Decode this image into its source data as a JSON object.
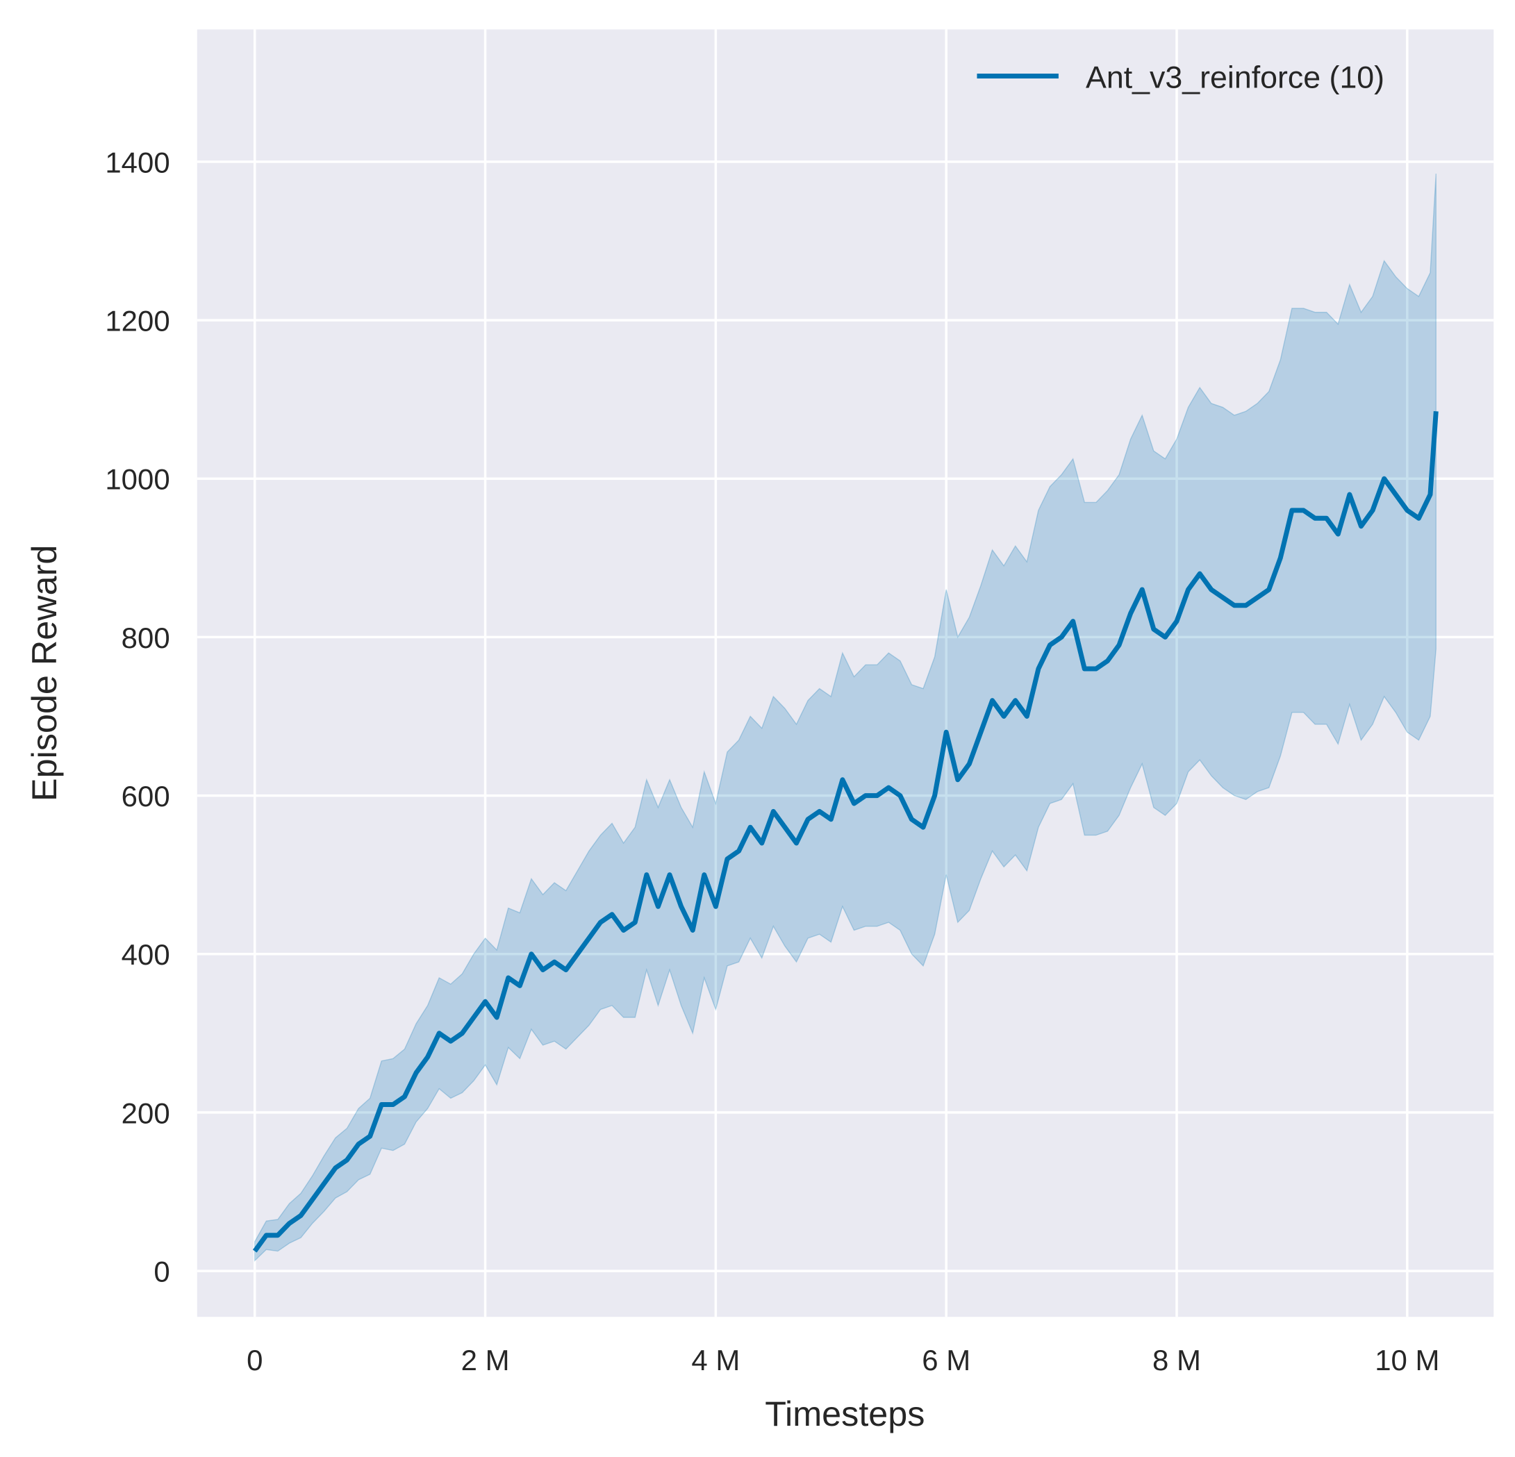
{
  "chart_data": {
    "type": "line",
    "title": "",
    "xlabel": "Timesteps",
    "ylabel": "Episode Reward",
    "xlim": [
      -0.5,
      10.75
    ],
    "ylim": [
      -58,
      1567
    ],
    "x_unit": "M",
    "xticks": [
      0,
      2,
      4,
      6,
      8,
      10
    ],
    "xtick_labels": [
      "0",
      "2 M",
      "4 M",
      "6 M",
      "8 M",
      "10 M"
    ],
    "yticks": [
      0,
      200,
      400,
      600,
      800,
      1000,
      1200,
      1400
    ],
    "ytick_labels": [
      "0",
      "200",
      "400",
      "600",
      "800",
      "1000",
      "1200",
      "1400"
    ],
    "grid": true,
    "legend_placement": "top-right",
    "background": "#eaeaf2",
    "series": [
      {
        "name": "Ant_v3_reinforce (10)",
        "color": "#0173b2",
        "x": [
          0,
          0.1,
          0.2,
          0.3,
          0.4,
          0.5,
          0.6,
          0.7,
          0.8,
          0.9,
          1.0,
          1.1,
          1.2,
          1.3,
          1.4,
          1.5,
          1.6,
          1.7,
          1.8,
          1.9,
          2.0,
          2.1,
          2.2,
          2.3,
          2.4,
          2.5,
          2.6,
          2.7,
          2.8,
          2.9,
          3.0,
          3.1,
          3.2,
          3.3,
          3.4,
          3.5,
          3.6,
          3.7,
          3.8,
          3.9,
          4.0,
          4.1,
          4.2,
          4.3,
          4.4,
          4.5,
          4.6,
          4.7,
          4.8,
          4.9,
          5.0,
          5.1,
          5.2,
          5.3,
          5.4,
          5.5,
          5.6,
          5.7,
          5.8,
          5.9,
          6.0,
          6.1,
          6.2,
          6.3,
          6.4,
          6.5,
          6.6,
          6.7,
          6.8,
          6.9,
          7.0,
          7.1,
          7.2,
          7.3,
          7.4,
          7.5,
          7.6,
          7.7,
          7.8,
          7.9,
          8.0,
          8.1,
          8.2,
          8.3,
          8.4,
          8.5,
          8.6,
          8.7,
          8.8,
          8.9,
          9.0,
          9.1,
          9.2,
          9.3,
          9.4,
          9.5,
          9.6,
          9.7,
          9.8,
          9.9,
          10.0,
          10.1,
          10.2,
          10.25
        ],
        "y": [
          25,
          45,
          45,
          60,
          70,
          90,
          110,
          130,
          140,
          160,
          170,
          210,
          210,
          220,
          250,
          270,
          300,
          290,
          300,
          320,
          340,
          320,
          370,
          360,
          400,
          380,
          390,
          380,
          400,
          420,
          440,
          450,
          430,
          440,
          500,
          460,
          500,
          460,
          430,
          500,
          460,
          520,
          530,
          560,
          540,
          580,
          560,
          540,
          570,
          580,
          570,
          620,
          590,
          600,
          600,
          610,
          600,
          570,
          560,
          600,
          680,
          620,
          640,
          680,
          720,
          700,
          720,
          700,
          760,
          790,
          800,
          820,
          760,
          760,
          770,
          790,
          830,
          860,
          810,
          800,
          820,
          860,
          880,
          860,
          850,
          840,
          840,
          850,
          860,
          900,
          960,
          960,
          950,
          950,
          930,
          980,
          940,
          960,
          1000,
          980,
          960,
          950,
          980,
          1085
        ],
        "ci_halfwidth": [
          12,
          18,
          20,
          25,
          28,
          30,
          35,
          38,
          40,
          45,
          48,
          55,
          58,
          60,
          62,
          65,
          70,
          72,
          75,
          80,
          80,
          85,
          88,
          92,
          95,
          95,
          100,
          100,
          105,
          110,
          110,
          115,
          110,
          120,
          120,
          125,
          120,
          125,
          130,
          130,
          130,
          135,
          140,
          140,
          145,
          145,
          150,
          150,
          150,
          155,
          155,
          160,
          160,
          165,
          165,
          170,
          170,
          170,
          175,
          175,
          180,
          180,
          185,
          185,
          190,
          190,
          195,
          195,
          200,
          200,
          205,
          205,
          210,
          210,
          215,
          215,
          220,
          220,
          225,
          225,
          230,
          230,
          235,
          235,
          240,
          240,
          245,
          245,
          250,
          250,
          255,
          255,
          260,
          260,
          265,
          265,
          270,
          270,
          275,
          275,
          280,
          280,
          280,
          300
        ]
      }
    ]
  }
}
